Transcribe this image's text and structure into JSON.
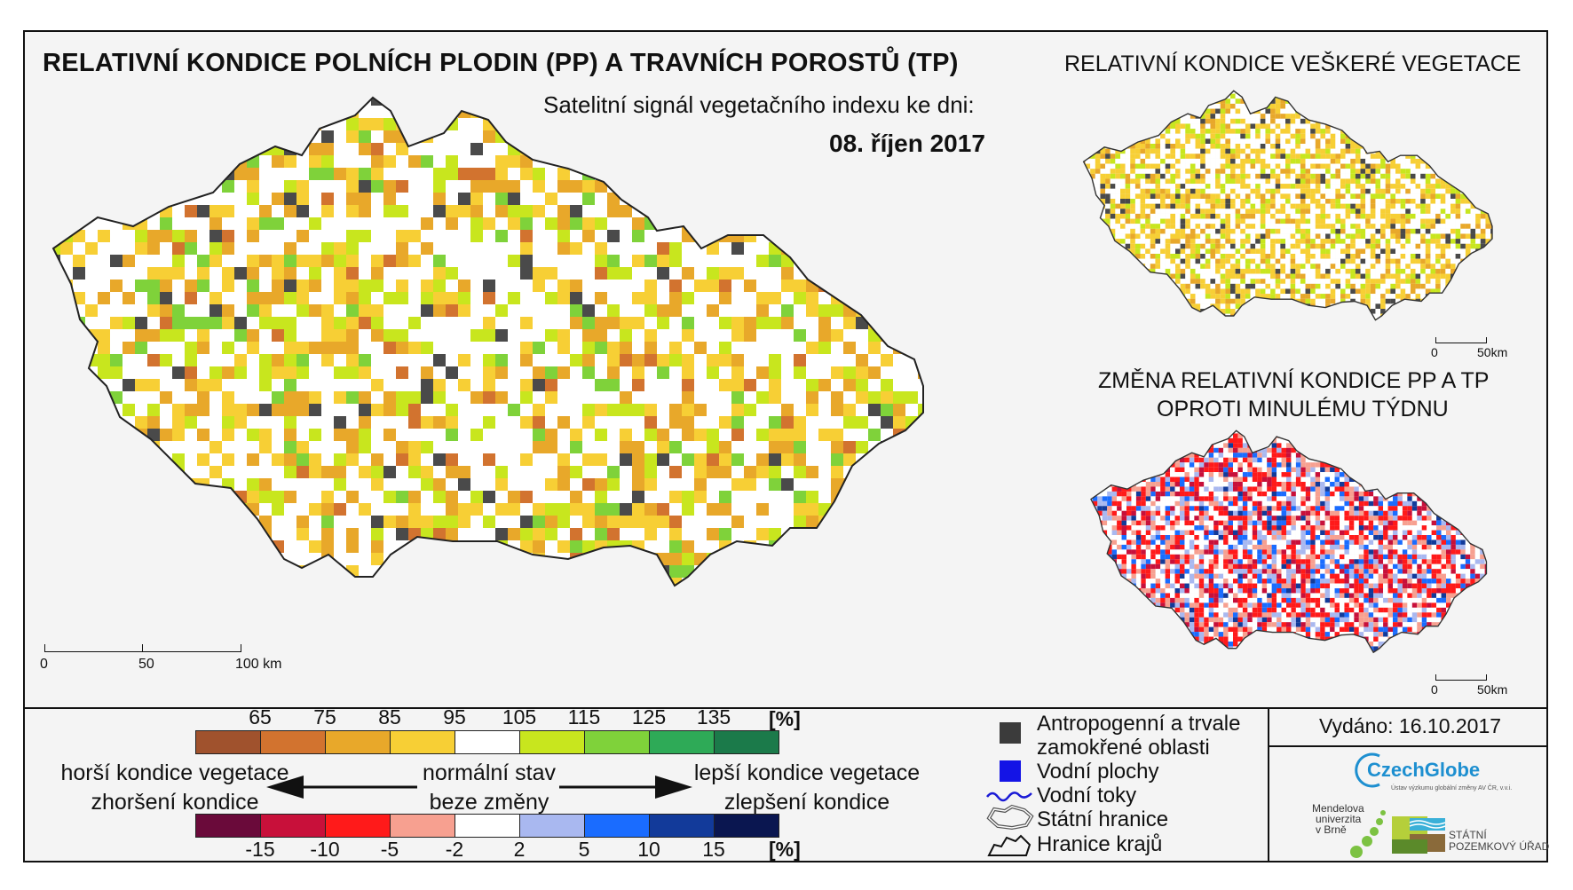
{
  "title": "RELATIVNÍ KONDICE POLNÍCH PLODIN (PP) A TRAVNÍCH POROSTŮ (TP)",
  "subtitle": "Satelitní signál vegetačního indexu ke dni:",
  "date": "08. říjen 2017",
  "right_title": "RELATIVNÍ KONDICE VEŠKERÉ VEGETACE",
  "change_title_line1": "ZMĚNA RELATIVNÍ KONDICE PP A TP",
  "change_title_line2": "OPROTI MINULÉMU TÝDNU",
  "main_scale": {
    "t0": "0",
    "t1": "50",
    "t2": "100 km"
  },
  "small_scale": {
    "t0": "0",
    "t1": "50km"
  },
  "legend_condition": {
    "ticks": [
      "65",
      "75",
      "85",
      "95",
      "105",
      "115",
      "125",
      "135"
    ],
    "unit": "[%]",
    "colors": [
      "#a0522d",
      "#d2732f",
      "#e8a82a",
      "#f7cf35",
      "#ffffff",
      "#c8e61e",
      "#7fd23a",
      "#2eaa57",
      "#1b7a4a"
    ]
  },
  "legend_change": {
    "ticks": [
      "-15",
      "-10",
      "-5",
      "-2",
      "2",
      "5",
      "10",
      "15"
    ],
    "unit": "[%]",
    "colors": [
      "#6a0a3a",
      "#c8103a",
      "#ff1a1a",
      "#f7a090",
      "#ffffff",
      "#a9b8f0",
      "#1a6cff",
      "#123a9a",
      "#0a1650"
    ]
  },
  "labels": {
    "worse_condition": "horší kondice vegetace",
    "worsening": "zhoršení kondice",
    "normal": "normální stav",
    "no_change": "beze změny",
    "better_condition": "lepší kondice vegetace",
    "improvement": "zlepšení kondice"
  },
  "map_legend": {
    "anthropogenic_1": "Antropogenní a trvale",
    "anthropogenic_2": "zamokřené oblasti",
    "water_bodies": "Vodní plochy",
    "rivers": "Vodní toky",
    "state_border": "Státní hranice",
    "region_border": "Hranice krajů"
  },
  "issued": "Vydáno: 16.10.2017",
  "logos": {
    "czechglobe": "CzechGlobe",
    "czechglobe_sub": "Ústav výzkumu globální změny AV ČR, v.v.i.",
    "mendel": [
      "Mendelova",
      "univerzita",
      "v Brně"
    ],
    "spu": [
      "STÁTNÍ",
      "POZEMKOVÝ ÚŘAD"
    ]
  }
}
